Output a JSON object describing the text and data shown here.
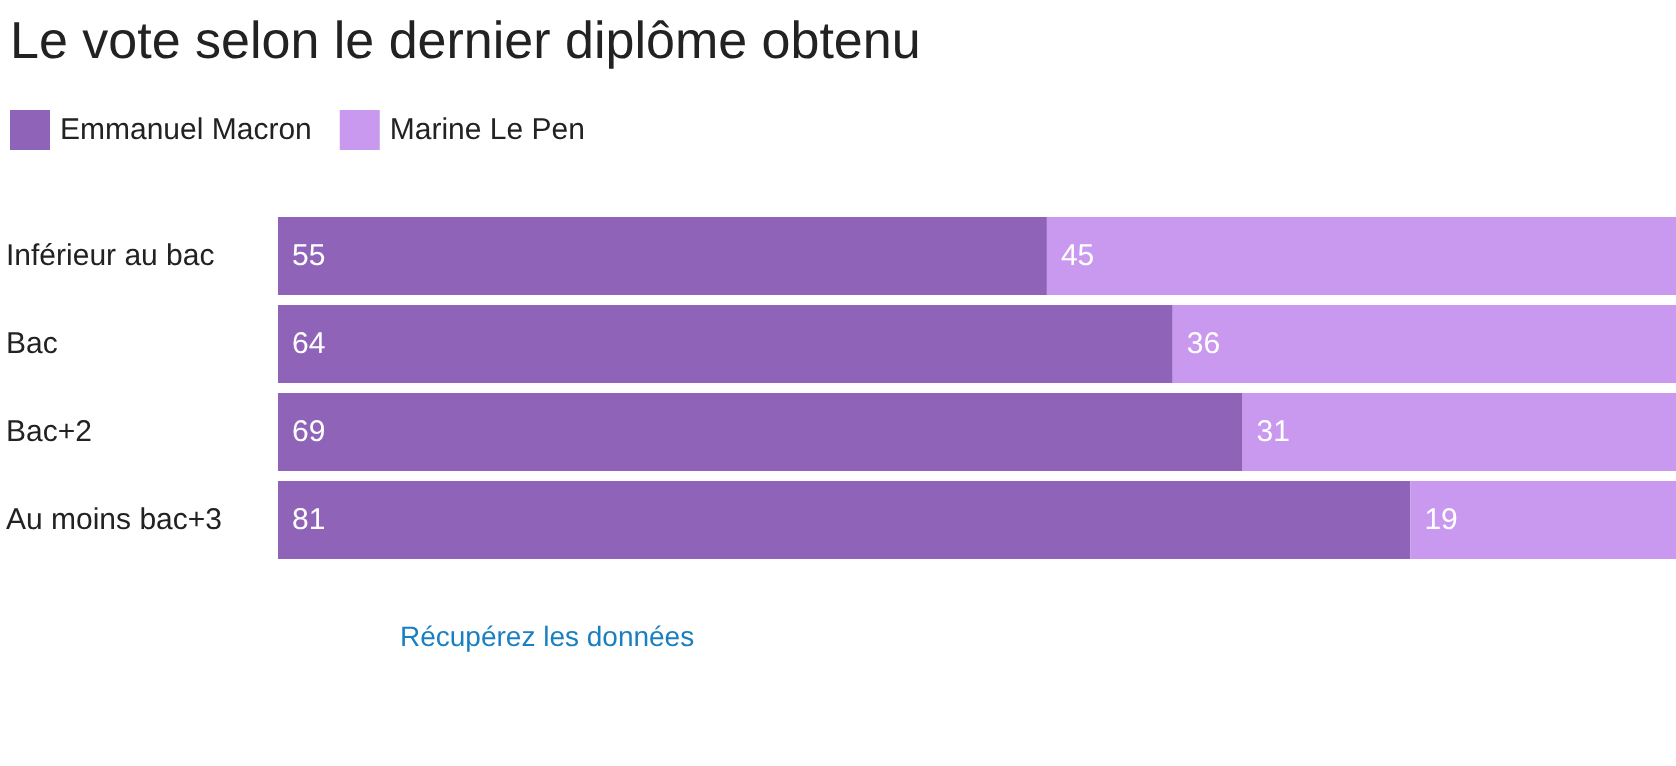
{
  "chart_data": {
    "type": "bar",
    "orientation": "horizontal",
    "stacked": true,
    "title": "Le vote selon le dernier diplôme obtenu",
    "categories": [
      "Inférieur au bac",
      "Bac",
      "Bac+2",
      "Au moins bac+3"
    ],
    "series": [
      {
        "name": "Emmanuel Macron",
        "color": "#8e63b8",
        "values": [
          55,
          64,
          69,
          81
        ]
      },
      {
        "name": "Marine Le Pen",
        "color": "#c899ee",
        "values": [
          45,
          36,
          31,
          19
        ]
      }
    ],
    "data_labels": true,
    "legend": "top left",
    "tick_labels": "y",
    "annotations": [
      "Récupérez les données"
    ]
  }
}
